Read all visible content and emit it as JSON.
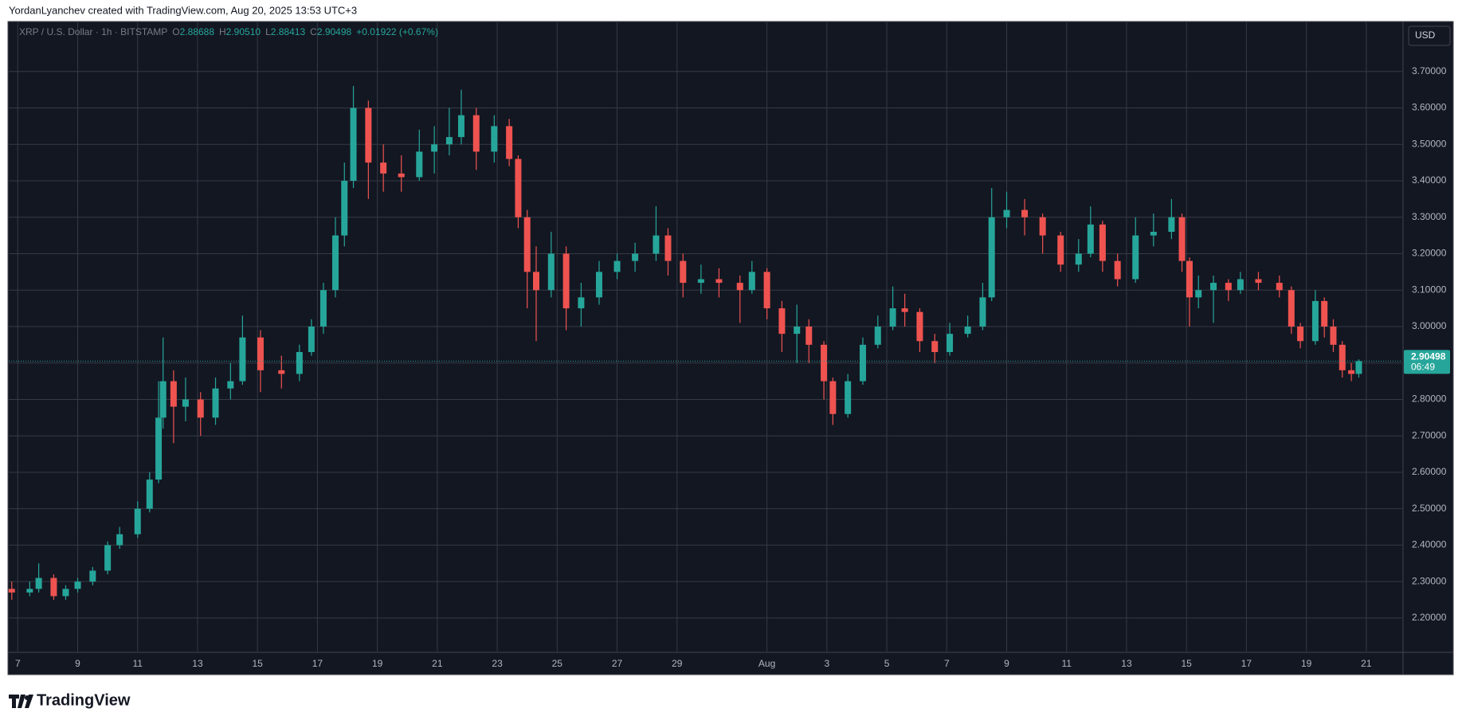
{
  "header": {
    "credit": "YordanLyanchev created with TradingView.com, Aug 20, 2025 13:53 UTC+3"
  },
  "footer": {
    "brand": "TradingView"
  },
  "chart_data": {
    "type": "candlestick",
    "legend": {
      "symbol": "XRP / U.S. Dollar · 1h · BITSTAMP",
      "ohlc": [
        {
          "key": "O",
          "value": "2.88688"
        },
        {
          "key": "H",
          "value": "2.90510"
        },
        {
          "key": "L",
          "value": "2.88413"
        },
        {
          "key": "C",
          "value": "2.90498"
        }
      ],
      "change": "+0.01922 (+0.67%)"
    },
    "currency": "USD",
    "last_price": 2.90498,
    "countdown": "06:49",
    "up_color": "#26a69a",
    "down_color": "#ef5350",
    "grid": true,
    "xlim": [
      6.7,
      53.2
    ],
    "ylim": [
      2.108,
      3.835
    ],
    "xticks": [
      7,
      9,
      11,
      13,
      15,
      17,
      19,
      21,
      23,
      25,
      27,
      29,
      {
        "value": 32,
        "label": "Aug"
      },
      {
        "value": 34,
        "label": "3"
      },
      {
        "value": 36,
        "label": "5"
      },
      {
        "value": 38,
        "label": "7"
      },
      {
        "value": 40,
        "label": "9"
      },
      {
        "value": 42,
        "label": "11"
      },
      {
        "value": 44,
        "label": "13"
      },
      {
        "value": 46,
        "label": "15"
      },
      {
        "value": 48,
        "label": "17"
      },
      {
        "value": 50,
        "label": "19"
      },
      {
        "value": 52,
        "label": "21"
      }
    ],
    "yticks": [
      {
        "value": 2.2,
        "label": "2.20000"
      },
      {
        "value": 2.3,
        "label": "2.30000"
      },
      {
        "value": 2.4,
        "label": "2.40000"
      },
      {
        "value": 2.5,
        "label": "2.50000"
      },
      {
        "value": 2.6,
        "label": "2.60000"
      },
      {
        "value": 2.7,
        "label": "2.70000"
      },
      {
        "value": 2.8,
        "label": "2.80000"
      },
      {
        "value": 2.9,
        "label": "2.90000"
      },
      {
        "value": 3.0,
        "label": "3.00000"
      },
      {
        "value": 3.1,
        "label": "3.10000"
      },
      {
        "value": 3.2,
        "label": "3.20000"
      },
      {
        "value": 3.3,
        "label": "3.30000"
      },
      {
        "value": 3.4,
        "label": "3.40000"
      },
      {
        "value": 3.5,
        "label": "3.50000"
      },
      {
        "value": 3.6,
        "label": "3.60000"
      },
      {
        "value": 3.7,
        "label": "3.70000"
      }
    ],
    "x": [
      6.8,
      7.4,
      7.7,
      8.2,
      8.6,
      9.0,
      9.5,
      10.0,
      10.4,
      11.0,
      11.4,
      11.7,
      11.85,
      12.2,
      12.6,
      13.1,
      13.6,
      14.1,
      14.5,
      15.1,
      15.8,
      16.4,
      16.8,
      17.2,
      17.6,
      17.9,
      18.2,
      18.7,
      19.2,
      19.8,
      20.4,
      20.9,
      21.4,
      21.8,
      22.3,
      22.9,
      23.4,
      23.7,
      24.0,
      24.3,
      24.8,
      25.3,
      25.8,
      26.4,
      27.0,
      27.6,
      28.3,
      28.7,
      29.2,
      29.8,
      30.4,
      31.1,
      31.5,
      32.0,
      32.5,
      33.0,
      33.4,
      33.9,
      34.2,
      34.7,
      35.2,
      35.7,
      36.2,
      36.6,
      37.1,
      37.6,
      38.1,
      38.7,
      39.2,
      39.5,
      40.0,
      40.6,
      41.2,
      41.8,
      42.4,
      42.8,
      43.2,
      43.7,
      44.3,
      44.9,
      45.5,
      45.85,
      46.1,
      46.4,
      46.9,
      47.4,
      47.8,
      48.4,
      49.1,
      49.5,
      49.8,
      50.3,
      50.6,
      50.9,
      51.2,
      51.5,
      51.75
    ],
    "open": [
      2.28,
      2.27,
      2.28,
      2.31,
      2.26,
      2.28,
      2.3,
      2.33,
      2.4,
      2.43,
      2.5,
      2.58,
      2.75,
      2.85,
      2.78,
      2.8,
      2.75,
      2.83,
      2.85,
      2.97,
      2.88,
      2.87,
      2.93,
      3.0,
      3.1,
      3.25,
      3.4,
      3.6,
      3.45,
      3.42,
      3.41,
      3.48,
      3.5,
      3.52,
      3.58,
      3.48,
      3.55,
      3.46,
      3.3,
      3.15,
      3.1,
      3.2,
      3.05,
      3.08,
      3.15,
      3.18,
      3.2,
      3.25,
      3.18,
      3.12,
      3.13,
      3.12,
      3.1,
      3.15,
      3.05,
      2.98,
      3.0,
      2.95,
      2.85,
      2.76,
      2.85,
      2.95,
      3.0,
      3.05,
      3.04,
      2.96,
      2.93,
      2.98,
      3.0,
      3.08,
      3.3,
      3.32,
      3.3,
      3.25,
      3.17,
      3.2,
      3.28,
      3.18,
      3.13,
      3.25,
      3.26,
      3.3,
      3.18,
      3.08,
      3.1,
      3.12,
      3.1,
      3.13,
      3.12,
      3.1,
      3.0,
      2.96,
      3.07,
      3.0,
      2.95,
      2.88,
      2.87
    ],
    "high": [
      2.3,
      2.3,
      2.35,
      2.32,
      2.29,
      2.31,
      2.34,
      2.41,
      2.45,
      2.52,
      2.6,
      2.85,
      2.97,
      2.88,
      2.86,
      2.82,
      2.86,
      2.9,
      3.03,
      2.99,
      2.92,
      2.95,
      3.02,
      3.12,
      3.3,
      3.45,
      3.66,
      3.62,
      3.5,
      3.47,
      3.54,
      3.55,
      3.6,
      3.65,
      3.6,
      3.58,
      3.57,
      3.47,
      3.32,
      3.22,
      3.26,
      3.22,
      3.12,
      3.18,
      3.2,
      3.23,
      3.33,
      3.27,
      3.2,
      3.17,
      3.16,
      3.14,
      3.18,
      3.16,
      3.07,
      3.06,
      3.02,
      2.96,
      2.86,
      2.87,
      2.97,
      3.03,
      3.11,
      3.09,
      3.05,
      2.98,
      3.01,
      3.03,
      3.12,
      3.38,
      3.37,
      3.35,
      3.31,
      3.26,
      3.24,
      3.33,
      3.29,
      3.2,
      3.3,
      3.31,
      3.35,
      3.31,
      3.19,
      3.14,
      3.14,
      3.13,
      3.15,
      3.15,
      3.14,
      3.11,
      3.01,
      3.1,
      3.08,
      3.02,
      2.96,
      2.9,
      2.91
    ],
    "low": [
      2.25,
      2.26,
      2.27,
      2.25,
      2.25,
      2.27,
      2.29,
      2.32,
      2.39,
      2.42,
      2.49,
      2.57,
      2.72,
      2.68,
      2.74,
      2.7,
      2.73,
      2.8,
      2.84,
      2.82,
      2.83,
      2.85,
      2.92,
      2.98,
      3.08,
      3.22,
      3.38,
      3.35,
      3.37,
      3.37,
      3.4,
      3.42,
      3.47,
      3.5,
      3.43,
      3.45,
      3.44,
      3.27,
      3.05,
      2.96,
      3.08,
      2.99,
      3.0,
      3.06,
      3.13,
      3.15,
      3.18,
      3.14,
      3.08,
      3.09,
      3.08,
      3.01,
      3.09,
      3.02,
      2.93,
      2.9,
      2.9,
      2.8,
      2.73,
      2.75,
      2.84,
      2.94,
      2.99,
      3.0,
      2.93,
      2.9,
      2.92,
      2.97,
      2.99,
      3.07,
      3.27,
      3.25,
      3.2,
      3.15,
      3.15,
      3.19,
      3.15,
      3.11,
      3.12,
      3.22,
      3.24,
      3.15,
      3.0,
      3.05,
      3.01,
      3.07,
      3.09,
      3.1,
      3.08,
      2.98,
      2.94,
      2.95,
      2.97,
      2.93,
      2.86,
      2.85,
      2.86
    ],
    "close": [
      2.27,
      2.28,
      2.31,
      2.26,
      2.28,
      2.3,
      2.33,
      2.4,
      2.43,
      2.5,
      2.58,
      2.75,
      2.85,
      2.78,
      2.8,
      2.75,
      2.83,
      2.85,
      2.97,
      2.88,
      2.87,
      2.93,
      3.0,
      3.1,
      3.25,
      3.4,
      3.6,
      3.45,
      3.42,
      3.41,
      3.48,
      3.5,
      3.52,
      3.58,
      3.48,
      3.55,
      3.46,
      3.3,
      3.15,
      3.1,
      3.2,
      3.05,
      3.08,
      3.15,
      3.18,
      3.2,
      3.25,
      3.18,
      3.12,
      3.13,
      3.12,
      3.1,
      3.15,
      3.05,
      2.98,
      3.0,
      2.95,
      2.85,
      2.76,
      2.85,
      2.95,
      3.0,
      3.05,
      3.04,
      2.96,
      2.93,
      2.98,
      3.0,
      3.08,
      3.3,
      3.32,
      3.3,
      3.25,
      3.17,
      3.2,
      3.28,
      3.18,
      3.13,
      3.25,
      3.26,
      3.3,
      3.18,
      3.08,
      3.1,
      3.12,
      3.1,
      3.13,
      3.12,
      3.1,
      3.0,
      2.96,
      3.07,
      3.0,
      2.95,
      2.88,
      2.87,
      2.90498
    ]
  }
}
